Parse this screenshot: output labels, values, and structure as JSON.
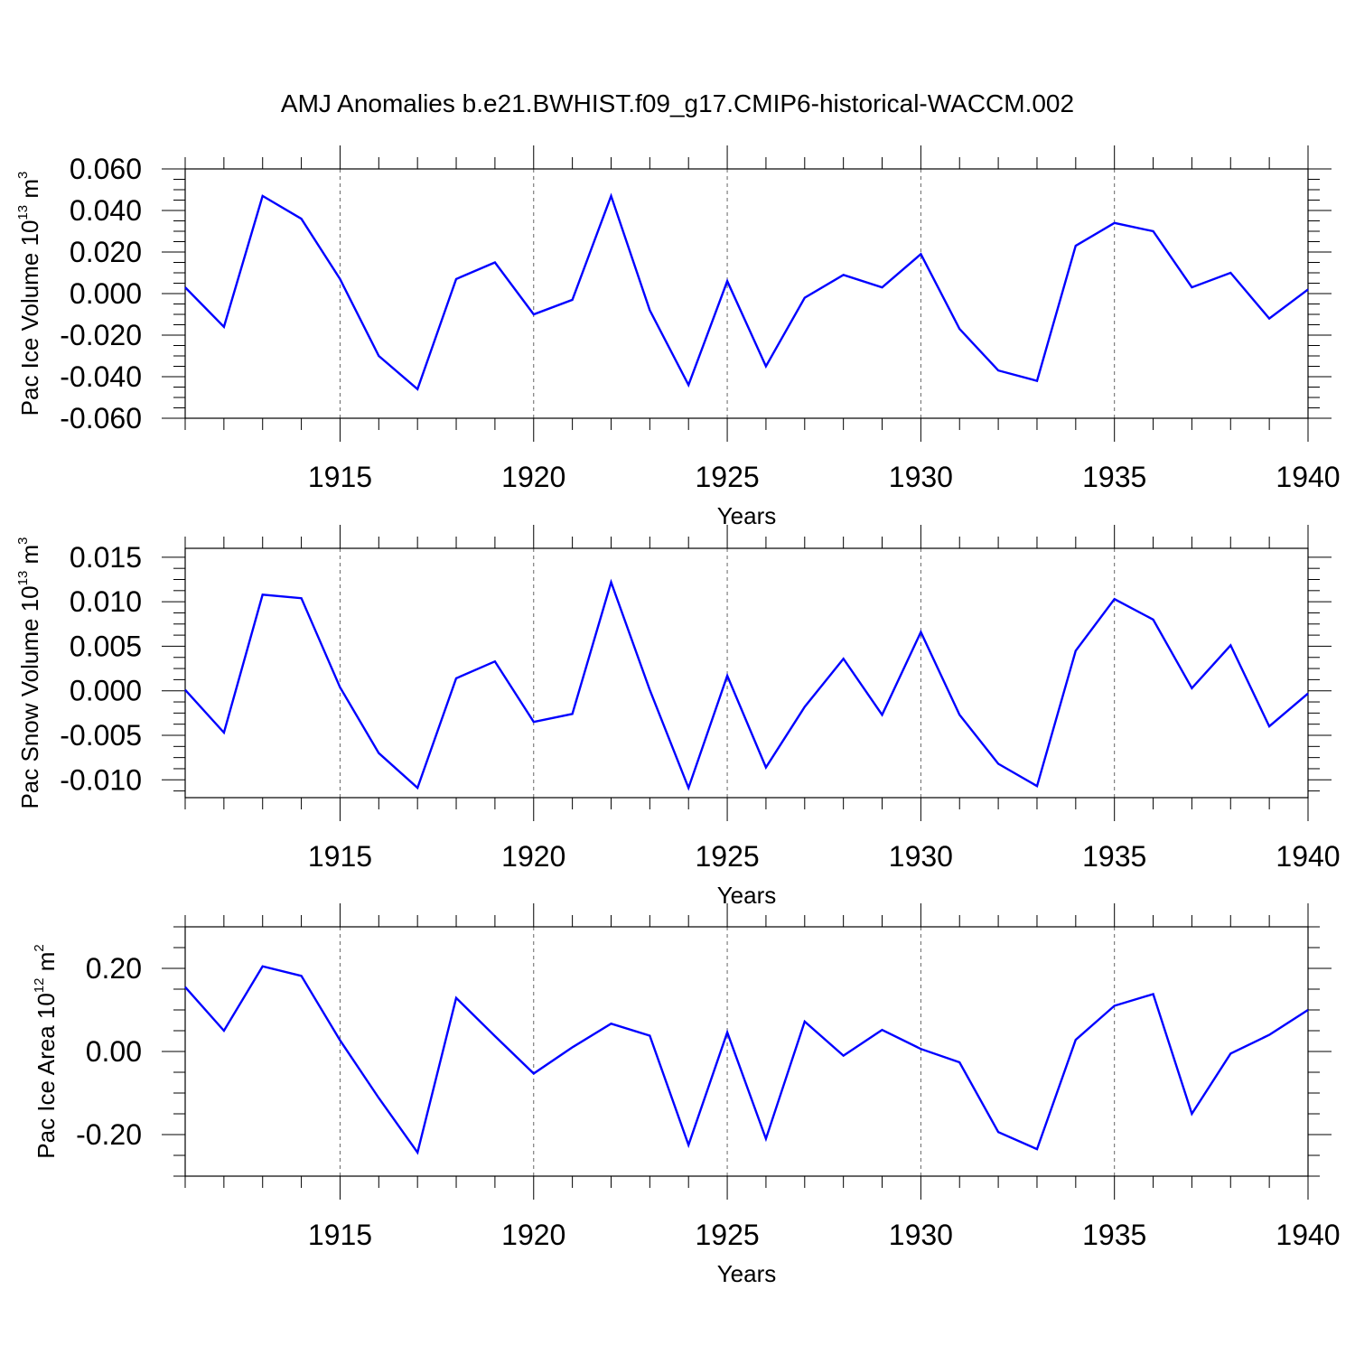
{
  "title": "AMJ Anomalies b.e21.BWHIST.f09_g17.CMIP6-historical-WACCM.002",
  "chart_data": [
    {
      "type": "line",
      "ylabel": "Pac Ice Volume 10",
      "ylabel_exponent": "13",
      "ylabel_unit": "m",
      "ylabel_unit_exponent": "3",
      "xlabel": "Years",
      "xlim": [
        1911,
        1940
      ],
      "ylim": [
        -0.06,
        0.06
      ],
      "xticks": [
        "1915",
        "1920",
        "1925",
        "1930",
        "1935",
        "1940"
      ],
      "yticks": [
        "0.060",
        "0.040",
        "0.020",
        "0.000",
        "-0.020",
        "-0.040",
        "-0.060"
      ],
      "grid": "vertical dashed at major x ticks",
      "color": "#0000ff",
      "x": [
        1911,
        1912,
        1913,
        1914,
        1915,
        1916,
        1917,
        1918,
        1919,
        1920,
        1921,
        1922,
        1923,
        1924,
        1925,
        1926,
        1927,
        1928,
        1929,
        1930,
        1931,
        1932,
        1933,
        1934,
        1935,
        1936,
        1937,
        1938,
        1939,
        1940
      ],
      "y": [
        0.003,
        -0.016,
        0.047,
        0.036,
        0.007,
        -0.03,
        -0.046,
        0.007,
        0.015,
        -0.01,
        -0.003,
        0.047,
        -0.008,
        -0.044,
        0.006,
        -0.035,
        -0.002,
        0.009,
        0.003,
        0.019,
        -0.017,
        -0.037,
        -0.042,
        0.023,
        0.034,
        0.03,
        0.003,
        0.01,
        -0.012,
        0.002
      ]
    },
    {
      "type": "line",
      "ylabel": "Pac Snow Volume 10",
      "ylabel_exponent": "13",
      "ylabel_unit": "m",
      "ylabel_unit_exponent": "3",
      "xlabel": "Years",
      "xlim": [
        1911,
        1940
      ],
      "ylim": [
        -0.012,
        0.016
      ],
      "xticks": [
        "1915",
        "1920",
        "1925",
        "1930",
        "1935",
        "1940"
      ],
      "yticks": [
        "0.015",
        "0.010",
        "0.005",
        "0.000",
        "-0.005",
        "-0.010"
      ],
      "grid": "vertical dashed at major x ticks",
      "color": "#0000ff",
      "x": [
        1911,
        1912,
        1913,
        1914,
        1915,
        1916,
        1917,
        1918,
        1919,
        1920,
        1921,
        1922,
        1923,
        1924,
        1925,
        1926,
        1927,
        1928,
        1929,
        1930,
        1931,
        1932,
        1933,
        1934,
        1935,
        1936,
        1937,
        1938,
        1939,
        1940
      ],
      "y": [
        0.0001,
        -0.0047,
        0.0108,
        0.0104,
        0.0004,
        -0.007,
        -0.0109,
        0.0014,
        0.0033,
        -0.0035,
        -0.0026,
        0.0122,
        0.0001,
        -0.0109,
        0.0017,
        -0.0086,
        -0.0018,
        0.0036,
        -0.0027,
        0.0066,
        -0.0027,
        -0.0082,
        -0.0107,
        0.0045,
        0.0103,
        0.008,
        0.0003,
        0.0051,
        -0.004,
        -0.0003
      ]
    },
    {
      "type": "line",
      "ylabel": "Pac Ice Area 10",
      "ylabel_exponent": "12",
      "ylabel_unit": "m",
      "ylabel_unit_exponent": "2",
      "xlabel": "Years",
      "xlim": [
        1911,
        1940
      ],
      "ylim": [
        -0.3,
        0.3
      ],
      "xticks": [
        "1915",
        "1920",
        "1925",
        "1930",
        "1935",
        "1940"
      ],
      "yticks": [
        "0.20",
        "0.00",
        "-0.20"
      ],
      "grid": "vertical dashed at major x ticks",
      "color": "#0000ff",
      "x": [
        1911,
        1912,
        1913,
        1914,
        1915,
        1916,
        1917,
        1918,
        1919,
        1920,
        1921,
        1922,
        1923,
        1924,
        1925,
        1926,
        1927,
        1928,
        1929,
        1930,
        1931,
        1932,
        1933,
        1934,
        1935,
        1936,
        1937,
        1938,
        1939,
        1940
      ],
      "y": [
        0.155,
        0.05,
        0.205,
        0.182,
        0.027,
        -0.112,
        -0.243,
        0.129,
        0.037,
        -0.053,
        0.01,
        0.067,
        0.038,
        -0.225,
        0.046,
        -0.21,
        0.072,
        -0.01,
        0.052,
        0.006,
        -0.026,
        -0.194,
        -0.235,
        0.028,
        0.11,
        0.138,
        -0.15,
        -0.005,
        0.04,
        0.1
      ]
    }
  ]
}
